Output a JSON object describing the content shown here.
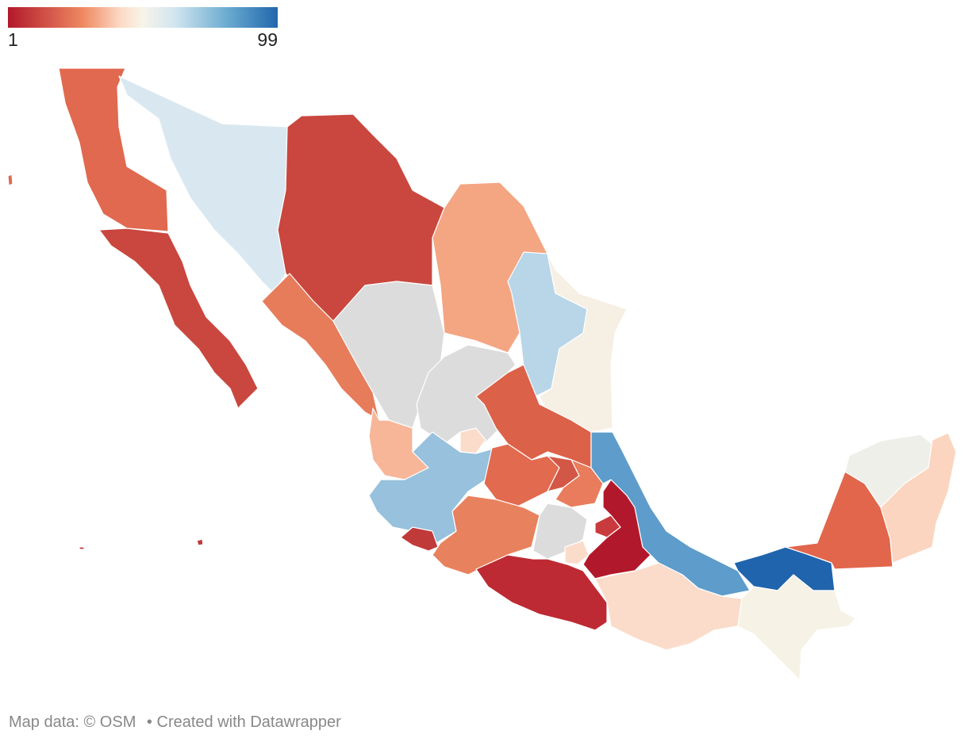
{
  "legend": {
    "min_label": "1",
    "max_label": "99",
    "color_low": "#b2182b",
    "color_mid": "#f7f4ea",
    "color_high": "#2166ac",
    "no_data_color": "#dcdcdc"
  },
  "footer": {
    "map_data": "Map data: © OSM",
    "separator": "•",
    "credit": "Created with Datawrapper"
  }
}
